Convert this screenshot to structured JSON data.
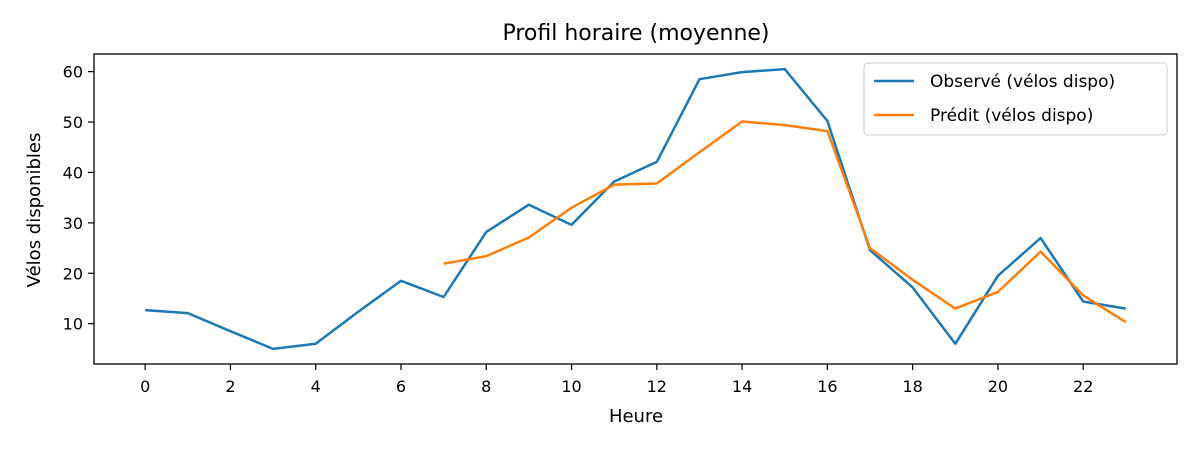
{
  "chart_data": {
    "type": "line",
    "title": "Profil horaire (moyenne)",
    "xlabel": "Heure",
    "ylabel": "Vélos disponibles",
    "xlim": [
      -1.2,
      24.2
    ],
    "ylim": [
      2,
      63.5
    ],
    "xticks": [
      0,
      2,
      4,
      6,
      8,
      10,
      12,
      14,
      16,
      18,
      20,
      22
    ],
    "yticks": [
      10,
      20,
      30,
      40,
      50,
      60
    ],
    "grid": false,
    "legend_position": "top-right",
    "series": [
      {
        "name": "Observé (vélos dispo)",
        "color": "#1f77b4",
        "x": [
          0,
          1,
          2,
          3,
          4,
          5,
          6,
          7,
          8,
          9,
          10,
          11,
          12,
          13,
          14,
          15,
          16,
          17,
          18,
          19,
          20,
          21,
          22,
          23
        ],
        "values": [
          12.7,
          12.1,
          8.5,
          5.0,
          6.0,
          12.4,
          18.5,
          15.3,
          28.2,
          33.6,
          29.6,
          38.2,
          42.1,
          58.5,
          59.9,
          60.5,
          50.2,
          24.6,
          17.2,
          6.0,
          19.5,
          27.0,
          14.4,
          13.0
        ]
      },
      {
        "name": "Prédit (vélos dispo)",
        "color": "#ff7f0e",
        "x": [
          7,
          8,
          9,
          10,
          11,
          12,
          13,
          14,
          15,
          16,
          17,
          18,
          19,
          20,
          21,
          22,
          23
        ],
        "values": [
          21.9,
          23.4,
          27.1,
          33.0,
          37.6,
          37.8,
          44.0,
          50.1,
          49.4,
          48.2,
          25.0,
          18.7,
          13.0,
          16.3,
          24.3,
          15.6,
          10.3
        ]
      }
    ]
  }
}
